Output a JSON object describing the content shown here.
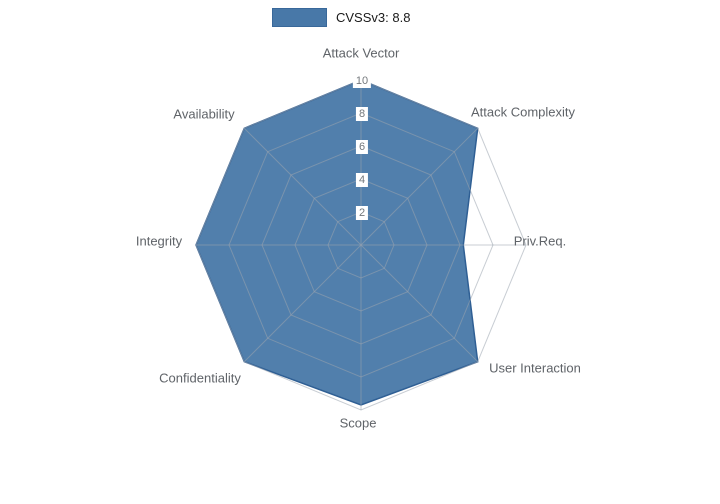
{
  "legend": {
    "label": "CVSSv3: 8.8",
    "swatch_color": "#4878a8"
  },
  "chart_data": {
    "type": "radar",
    "title": "CVSSv3: 8.8",
    "categories": [
      "Attack Vector",
      "Attack Complexity",
      "Priv.Req.",
      "User Interaction",
      "Scope",
      "Confidentiality",
      "Integrity",
      "Availability"
    ],
    "series": [
      {
        "name": "CVSSv3: 8.8",
        "values": [
          10,
          10,
          6.2,
          10,
          9.7,
          10,
          10,
          10
        ]
      }
    ],
    "ticks": [
      "2",
      "4",
      "6",
      "8",
      "10"
    ],
    "tick_values": [
      2,
      4,
      6,
      8,
      10
    ],
    "rmax": 10,
    "grid": true,
    "legend_position": "top",
    "fill_color": "#4878a8",
    "fill_opacity": 0.95,
    "line_color": "#2f5f94",
    "grid_color": "#9aa4ae"
  }
}
